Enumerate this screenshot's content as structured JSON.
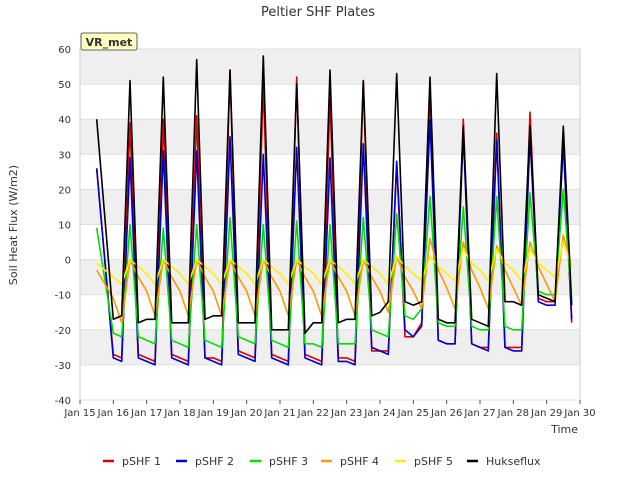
{
  "chart_data": {
    "type": "line",
    "title": "Peltier SHF Plates",
    "xlabel": "Time",
    "ylabel": "Soil Heat Flux (W/m2)",
    "badge": "VR_met",
    "ylim": [
      -40,
      60
    ],
    "xlim": [
      "2024-01-15",
      "2024-01-30"
    ],
    "yticks": [
      -40,
      -30,
      -20,
      -10,
      0,
      10,
      20,
      30,
      40,
      50,
      60
    ],
    "xticks": [
      "Jan 15",
      "Jan 16",
      "Jan 17",
      "Jan 18",
      "Jan 19",
      "Jan 20",
      "Jan 21",
      "Jan 22",
      "Jan 23",
      "Jan 24",
      "Jan 25",
      "Jan 26",
      "Jan 27",
      "Jan 28",
      "Jan 29",
      "Jan 30"
    ],
    "grid": true,
    "legend": "bottom",
    "x": [
      "2024-01-15 12:00",
      "2024-01-16 00:00",
      "2024-01-16 06:00",
      "2024-01-16 12:00",
      "2024-01-16 18:00",
      "2024-01-17 00:00",
      "2024-01-17 06:00",
      "2024-01-17 12:00",
      "2024-01-17 18:00",
      "2024-01-18 00:00",
      "2024-01-18 06:00",
      "2024-01-18 12:00",
      "2024-01-18 18:00",
      "2024-01-19 00:00",
      "2024-01-19 06:00",
      "2024-01-19 12:00",
      "2024-01-19 18:00",
      "2024-01-20 00:00",
      "2024-01-20 06:00",
      "2024-01-20 12:00",
      "2024-01-20 18:00",
      "2024-01-21 00:00",
      "2024-01-21 06:00",
      "2024-01-21 12:00",
      "2024-01-21 18:00",
      "2024-01-22 00:00",
      "2024-01-22 06:00",
      "2024-01-22 12:00",
      "2024-01-22 18:00",
      "2024-01-23 00:00",
      "2024-01-23 06:00",
      "2024-01-23 12:00",
      "2024-01-23 18:00",
      "2024-01-24 00:00",
      "2024-01-24 06:00",
      "2024-01-24 12:00",
      "2024-01-24 18:00",
      "2024-01-25 00:00",
      "2024-01-25 06:00",
      "2024-01-25 12:00",
      "2024-01-25 18:00",
      "2024-01-26 00:00",
      "2024-01-26 06:00",
      "2024-01-26 12:00",
      "2024-01-26 18:00",
      "2024-01-27 00:00",
      "2024-01-27 06:00",
      "2024-01-27 12:00",
      "2024-01-27 18:00",
      "2024-01-28 00:00",
      "2024-01-28 06:00",
      "2024-01-28 12:00",
      "2024-01-28 18:00",
      "2024-01-29 00:00",
      "2024-01-29 06:00",
      "2024-01-29 12:00",
      "2024-01-29 18:00"
    ],
    "series": [
      {
        "name": "pSHF 1",
        "color": "#dd0000",
        "values": [
          26,
          -27,
          -28,
          39,
          -27,
          -28,
          -29,
          40,
          -27,
          -28,
          -29,
          41,
          -28,
          -28,
          -29,
          54,
          -26,
          -27,
          -28,
          50,
          -27,
          -28,
          -29,
          52,
          -27,
          -28,
          -29,
          46,
          -28,
          -28,
          -29,
          51,
          -26,
          -26,
          -26,
          27,
          -22,
          -22,
          -18,
          48,
          -23,
          -24,
          -24,
          40,
          -24,
          -25,
          -25,
          36,
          -25,
          -25,
          -25,
          42,
          -11,
          -12,
          -12,
          34,
          -18
        ]
      },
      {
        "name": "pSHF 2",
        "color": "#0000cc",
        "values": [
          26,
          -28,
          -29,
          29,
          -28,
          -29,
          -30,
          31,
          -28,
          -29,
          -30,
          31,
          -28,
          -29,
          -30,
          35,
          -27,
          -28,
          -29,
          30,
          -28,
          -29,
          -30,
          32,
          -28,
          -29,
          -30,
          29,
          -29,
          -29,
          -30,
          33,
          -25,
          -26,
          -27,
          28,
          -20,
          -22,
          -19,
          40,
          -23,
          -24,
          -24,
          36,
          -24,
          -25,
          -26,
          34,
          -25,
          -26,
          -26,
          35,
          -12,
          -13,
          -13,
          33,
          -17
        ]
      },
      {
        "name": "pSHF 3",
        "color": "#00dd00",
        "values": [
          9,
          -21,
          -22,
          10,
          -22,
          -23,
          -24,
          9,
          -23,
          -24,
          -25,
          10,
          -23,
          -24,
          -25,
          12,
          -22,
          -23,
          -24,
          10,
          -23,
          -24,
          -25,
          11,
          -24,
          -24,
          -25,
          10,
          -24,
          -24,
          -24,
          12,
          -20,
          -21,
          -22,
          13,
          -16,
          -17,
          -14,
          18,
          -18,
          -19,
          -19,
          15,
          -19,
          -20,
          -20,
          18,
          -19,
          -20,
          -20,
          19,
          -9,
          -10,
          -10,
          20,
          -12
        ]
      },
      {
        "name": "pSHF 4",
        "color": "#ff9900",
        "values": [
          -3,
          -11,
          -18,
          0,
          -5,
          -9,
          -16,
          0,
          -5,
          -9,
          -16,
          0,
          -5,
          -9,
          -16,
          0,
          -5,
          -9,
          -16,
          0,
          -5,
          -9,
          -16,
          0,
          -5,
          -9,
          -16,
          0,
          -5,
          -9,
          -16,
          0,
          -5,
          -9,
          -15,
          1,
          -5,
          -9,
          -14,
          6,
          -3,
          -8,
          -14,
          5,
          -3,
          -8,
          -14,
          4,
          -3,
          -8,
          -13,
          5,
          -2,
          -7,
          -12,
          7,
          -2
        ]
      },
      {
        "name": "pSHF 5",
        "color": "#ffee00",
        "values": [
          -1,
          -5,
          -7,
          0,
          -2,
          -4,
          -7,
          0,
          -2,
          -4,
          -7,
          0,
          -2,
          -4,
          -7,
          0,
          -2,
          -4,
          -7,
          0,
          -2,
          -4,
          -7,
          0,
          -2,
          -4,
          -7,
          0,
          -2,
          -4,
          -7,
          0,
          -2,
          -4,
          -7,
          1,
          -2,
          -4,
          -6,
          1,
          -2,
          -4,
          -6,
          3,
          -1,
          -3,
          -6,
          3,
          -1,
          -3,
          -6,
          3,
          -1,
          -3,
          -5,
          5,
          -2
        ]
      },
      {
        "name": "Hukseflux",
        "color": "#000000",
        "values": [
          40,
          -17,
          -16,
          51,
          -18,
          -17,
          -17,
          52,
          -18,
          -18,
          -18,
          57,
          -17,
          -16,
          -16,
          54,
          -18,
          -18,
          -18,
          58,
          -20,
          -20,
          -20,
          50,
          -21,
          -18,
          -18,
          54,
          -18,
          -17,
          -17,
          51,
          -16,
          -15,
          -12,
          53,
          -12,
          -13,
          -12,
          52,
          -17,
          -18,
          -18,
          38,
          -17,
          -18,
          -19,
          53,
          -12,
          -12,
          -13,
          38,
          -10,
          -11,
          -12,
          38,
          -13
        ]
      }
    ]
  }
}
